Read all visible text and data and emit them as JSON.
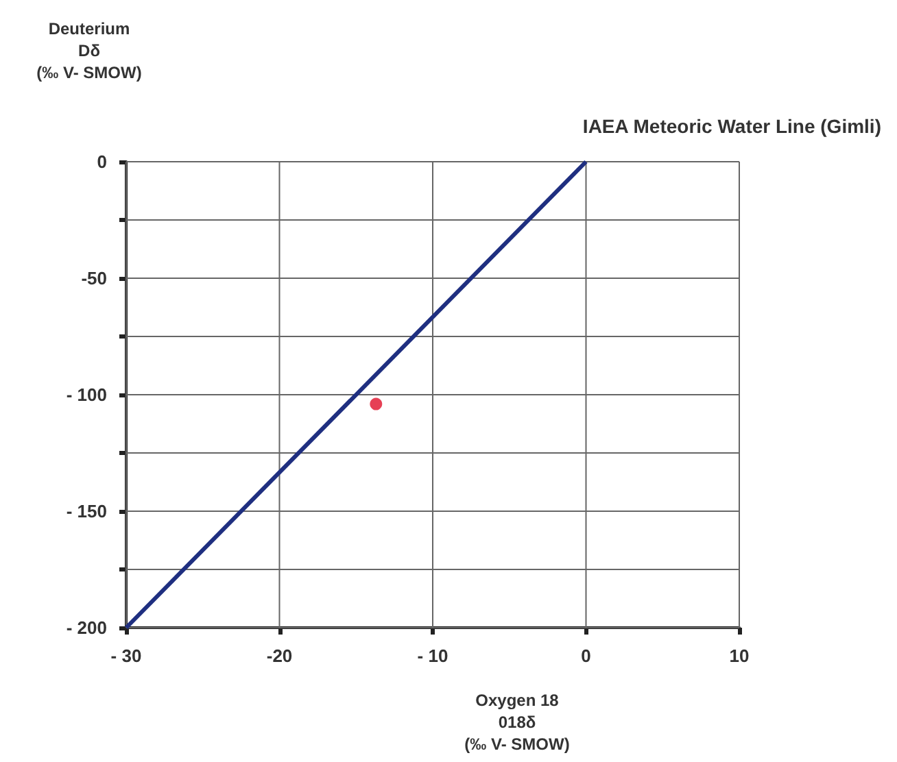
{
  "chart_data": {
    "type": "line",
    "title": "IAEA Meteoric Water Line (Gimli)",
    "xlabel": "Oxygen 18\n018δ\n(‰ V- SMOW)",
    "ylabel": "Deuterium\nDδ\n(‰ V- SMOW)",
    "series": [
      {
        "color": "#1f2f80",
        "x": [
          -30,
          0
        ],
        "values": [
          -200,
          0
        ],
        "marker": "none",
        "line_style": "solid"
      },
      {
        "type": "scatter",
        "color": "#e0102a",
        "x": [
          -13.7
        ],
        "values": [
          -104
        ],
        "marker": "circle"
      }
    ],
    "xlim": [
      -30,
      10
    ],
    "xticks": [
      {
        "value": -30,
        "label": "- 30"
      },
      -20,
      {
        "value": -10,
        "label": "- 10"
      },
      0,
      10
    ],
    "ylim": [
      -200,
      0
    ],
    "yticks": [
      {
        "value": -200,
        "label": "- 200"
      },
      {
        "value": -175,
        "label": null
      },
      {
        "value": -150,
        "label": "- 150"
      },
      {
        "value": -125,
        "label": null
      },
      {
        "value": -100,
        "label": "- 100"
      },
      {
        "value": -75,
        "label": null
      },
      -50,
      {
        "value": -25,
        "label": null
      },
      0
    ],
    "grid": true
  }
}
